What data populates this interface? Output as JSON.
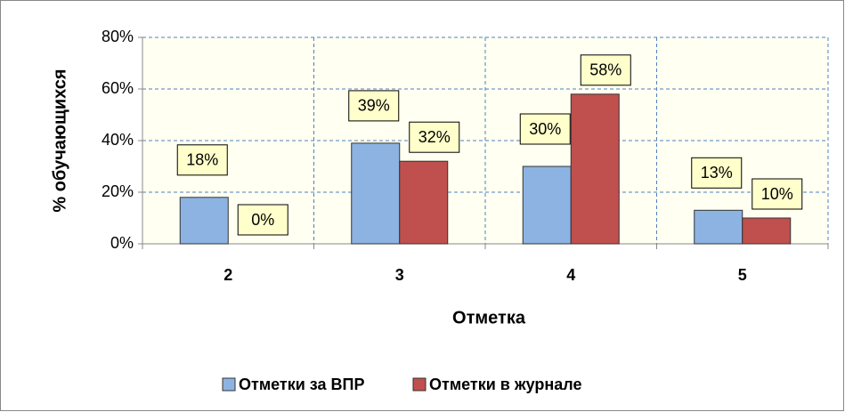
{
  "chart_data": {
    "type": "bar",
    "categories": [
      "2",
      "3",
      "4",
      "5"
    ],
    "series": [
      {
        "name": "Отметки за ВПР",
        "color": "#8db3e2",
        "values": [
          18,
          39,
          30,
          13
        ],
        "value_labels": [
          "18%",
          "39%",
          "30%",
          "13%"
        ]
      },
      {
        "name": "Отметки в журнале",
        "color": "#c0504d",
        "values": [
          0,
          32,
          58,
          10
        ],
        "value_labels": [
          "0%",
          "32%",
          "58%",
          "10%"
        ]
      }
    ],
    "xlabel": "Отметка",
    "ylabel": "% обучающихся",
    "ylim": [
      0,
      80
    ],
    "yticks": [
      {
        "value": 0,
        "label": "0%"
      },
      {
        "value": 20,
        "label": "20%"
      },
      {
        "value": 40,
        "label": "40%"
      },
      {
        "value": 60,
        "label": "60%"
      },
      {
        "value": 80,
        "label": "80%"
      }
    ],
    "grid": true,
    "legend": "bottom"
  }
}
